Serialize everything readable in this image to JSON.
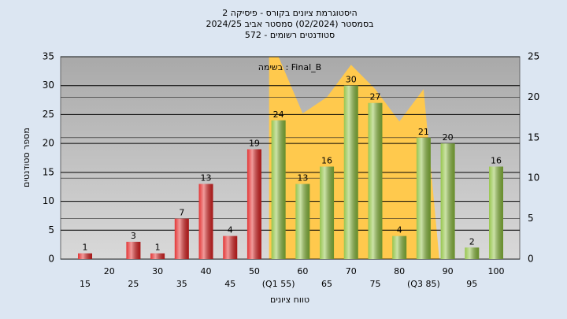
{
  "chart_data": {
    "type": "bar",
    "title": [
      "היסטוגרמת ציונים בקורס - פיסיקה 2",
      "בסמסטר  (02/2024)  סמסטר אביב 2024/25",
      "סטודנטים רשומים - 572"
    ],
    "xlabel": "טווח ציונים",
    "ylabel": "מספר סטודנטים",
    "categories": [
      "15",
      "20",
      "25",
      "30",
      "35",
      "40",
      "45",
      "50",
      "(Q1 55)",
      "60",
      "65",
      "70",
      "75",
      "80",
      "(Q3 85)",
      "90",
      "95",
      "100"
    ],
    "values": [
      1,
      null,
      3,
      1,
      7,
      13,
      4,
      19,
      24,
      13,
      16,
      30,
      27,
      4,
      21,
      20,
      2,
      16
    ],
    "colors": [
      "#e02020",
      null,
      "#e02020",
      "#e02020",
      "#e02020",
      "#e02020",
      "#e02020",
      "#e02020",
      "#8cbf3c",
      "#8cbf3c",
      "#8cbf3c",
      "#8cbf3c",
      "#8cbf3c",
      "#8cbf3c",
      "#8cbf3c",
      "#8cbf3c",
      "#8cbf3c",
      "#8cbf3c"
    ],
    "area": {
      "name": "בשימה : Final_B",
      "color": "#ffc94d",
      "axis": "y2",
      "values": [
        null,
        null,
        null,
        null,
        null,
        null,
        null,
        null,
        25,
        18,
        20,
        24,
        21,
        17,
        21,
        null,
        null,
        null
      ]
    },
    "ylim": [
      0,
      35
    ],
    "yticks": [
      0,
      5,
      10,
      15,
      20,
      25,
      30,
      35
    ],
    "y2lim": [
      0,
      25
    ],
    "y2ticks": [
      0,
      5,
      10,
      15,
      20,
      25
    ],
    "grid": true
  }
}
